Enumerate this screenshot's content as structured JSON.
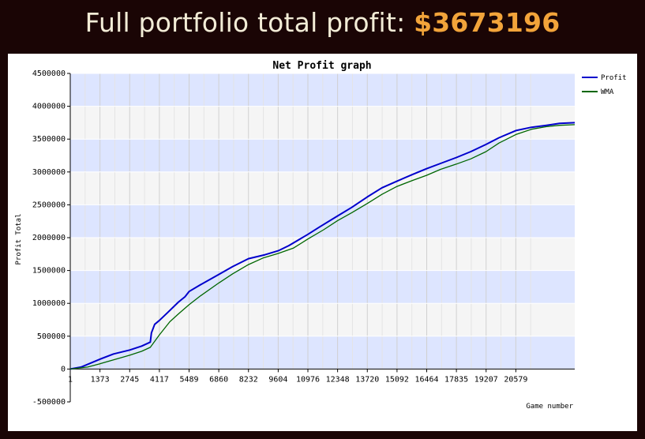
{
  "header": {
    "prefix": "Full portfolio total profit: ",
    "amount": "$3673196"
  },
  "colors": {
    "profit": "#0000cc",
    "wma": "#006600",
    "band_light": "#dde5ff",
    "band_gray": "#f5f5f5",
    "header_bg": "#1a0505",
    "amount": "#f2a43a"
  },
  "chart_data": {
    "type": "line",
    "title": "Net Profit graph",
    "xlabel": "Game number",
    "ylabel": "Profit Total",
    "xlim": [
      1,
      23300
    ],
    "ylim": [
      -500000,
      4500000
    ],
    "x_ticks": [
      "1",
      "1373",
      "2745",
      "4117",
      "5489",
      "6860",
      "8232",
      "9604",
      "10976",
      "12348",
      "13720",
      "15092",
      "16464",
      "17835",
      "19207",
      "20579"
    ],
    "y_ticks": [
      "4500000",
      "4000000",
      "3500000",
      "3000000",
      "2500000",
      "2000000",
      "1500000",
      "1000000",
      "500000",
      "0",
      "-500000"
    ],
    "legend": "top-right",
    "series": [
      {
        "name": "Profit",
        "x": [
          1,
          500,
          1373,
          2000,
          2745,
          3300,
          3700,
          3750,
          3900,
          4117,
          4500,
          5000,
          5300,
          5489,
          6000,
          6860,
          7500,
          8232,
          9000,
          9604,
          10100,
          10976,
          11500,
          12348,
          13000,
          13720,
          14400,
          15092,
          15800,
          16464,
          17100,
          17835,
          18500,
          19207,
          19800,
          20579,
          21300,
          22000,
          22600,
          23300
        ],
        "values": [
          0,
          30000,
          150000,
          230000,
          290000,
          350000,
          410000,
          550000,
          680000,
          740000,
          860000,
          1020000,
          1100000,
          1180000,
          1280000,
          1440000,
          1560000,
          1680000,
          1740000,
          1800000,
          1880000,
          2050000,
          2160000,
          2330000,
          2460000,
          2620000,
          2760000,
          2860000,
          2960000,
          3050000,
          3130000,
          3220000,
          3310000,
          3420000,
          3520000,
          3630000,
          3680000,
          3710000,
          3740000,
          3750000
        ]
      },
      {
        "name": "WMA",
        "x": [
          1,
          800,
          1373,
          2000,
          2745,
          3300,
          3700,
          4117,
          4600,
          5000,
          5489,
          6000,
          6860,
          7500,
          8232,
          8900,
          9604,
          10300,
          10976,
          11700,
          12348,
          13000,
          13720,
          14400,
          15092,
          15800,
          16464,
          17100,
          17835,
          18500,
          19207,
          19800,
          20579,
          21300,
          22000,
          22600,
          23300
        ],
        "values": [
          0,
          30000,
          80000,
          140000,
          210000,
          270000,
          330000,
          520000,
          720000,
          840000,
          980000,
          1110000,
          1310000,
          1450000,
          1590000,
          1690000,
          1760000,
          1840000,
          1980000,
          2120000,
          2260000,
          2380000,
          2520000,
          2660000,
          2780000,
          2870000,
          2950000,
          3040000,
          3120000,
          3200000,
          3310000,
          3440000,
          3570000,
          3650000,
          3690000,
          3710000,
          3720000
        ]
      }
    ]
  }
}
